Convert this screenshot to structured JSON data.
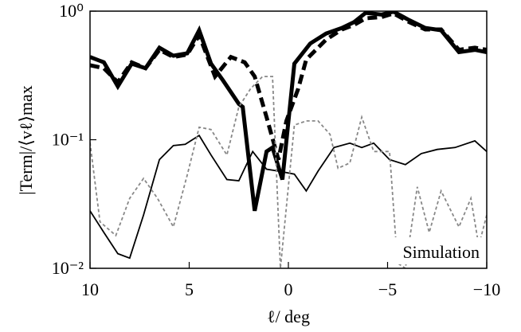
{
  "chart_data": {
    "type": "line",
    "xlabel": "ℓ/ deg",
    "ylabel": "|Term|/⟨vℓ⟩max",
    "annotation": "Simulation",
    "xlim": [
      10,
      -10
    ],
    "ylim": [
      0.01,
      1
    ],
    "log_y": true,
    "xticks": [
      10,
      5,
      0,
      {
        "value": -5,
        "label": "−5"
      },
      {
        "value": -10,
        "label": "−10"
      }
    ],
    "yticks": [
      {
        "value": 0.01,
        "label": "10⁻²"
      },
      {
        "value": 0.1,
        "label": "10⁻¹"
      },
      {
        "value": 1,
        "label": "10⁰"
      }
    ],
    "series": [
      {
        "color": "#000000",
        "width": 5,
        "dash": "none",
        "x": [
          10,
          9.3,
          8.6,
          7.9,
          7.2,
          6.5,
          5.8,
          5.1,
          4.5,
          3.9,
          3.3,
          2.5,
          2.3,
          1.7,
          1.1,
          0.8,
          0.3,
          -0.3,
          -1.1,
          -1.9,
          -2.7,
          -3.3,
          -3.9,
          -4.7,
          -5.3,
          -6.1,
          -6.9,
          -7.7,
          -8.6,
          -9.4,
          -10
        ],
        "values": [
          0.44,
          0.4,
          0.26,
          0.39,
          0.36,
          0.52,
          0.45,
          0.47,
          0.71,
          0.39,
          0.29,
          0.19,
          0.18,
          0.028,
          0.081,
          0.087,
          0.049,
          0.39,
          0.56,
          0.67,
          0.74,
          0.82,
          0.97,
          0.94,
          0.99,
          0.85,
          0.74,
          0.71,
          0.48,
          0.5,
          0.48
        ]
      },
      {
        "color": "#000000",
        "width": 5,
        "dash": "12,6",
        "x": [
          10,
          9.3,
          8.6,
          7.9,
          7.2,
          6.5,
          5.8,
          5.1,
          4.5,
          3.7,
          2.9,
          2.2,
          1.7,
          1.1,
          0.5,
          0.1,
          -0.5,
          -0.9,
          -1.9,
          -2.7,
          -3.3,
          -3.9,
          -4.7,
          -5.3,
          -6.1,
          -6.9,
          -7.7,
          -8.6,
          -9.4,
          -10
        ],
        "values": [
          0.38,
          0.36,
          0.28,
          0.4,
          0.36,
          0.5,
          0.44,
          0.46,
          0.65,
          0.31,
          0.44,
          0.4,
          0.31,
          0.15,
          0.07,
          0.14,
          0.25,
          0.42,
          0.6,
          0.72,
          0.78,
          0.88,
          0.9,
          0.96,
          0.82,
          0.72,
          0.72,
          0.5,
          0.52,
          0.5
        ]
      },
      {
        "color": "#000000",
        "width": 1.8,
        "dash": "none",
        "x": [
          10,
          9.3,
          8.6,
          8,
          7.3,
          6.5,
          5.8,
          5.2,
          4.5,
          3.9,
          3.1,
          2.5,
          1.8,
          1.1,
          0.5,
          -0.3,
          -0.9,
          -1.5,
          -2.3,
          -3.1,
          -3.7,
          -4.3,
          -5.1,
          -5.9,
          -6.7,
          -7.5,
          -8.4,
          -9.4,
          -10
        ],
        "values": [
          0.028,
          0.019,
          0.013,
          0.012,
          0.026,
          0.07,
          0.09,
          0.092,
          0.108,
          0.076,
          0.049,
          0.048,
          0.081,
          0.059,
          0.057,
          0.054,
          0.04,
          0.057,
          0.087,
          0.094,
          0.087,
          0.094,
          0.07,
          0.064,
          0.078,
          0.084,
          0.087,
          0.098,
          0.081
        ]
      },
      {
        "color": "#888888",
        "width": 1.8,
        "dash": "4,3",
        "x": [
          10,
          9.5,
          8.7,
          8,
          7.3,
          6.6,
          5.8,
          5.1,
          4.5,
          3.9,
          3.1,
          2.5,
          1.9,
          1.3,
          0.8,
          0.4,
          -0.3,
          -0.9,
          -1.5,
          -2.1,
          -2.5,
          -3.1,
          -3.7,
          -4.3,
          -5.1,
          -5.5,
          -5.9,
          -6.5,
          -7.1,
          -7.7,
          -8.6,
          -9.2,
          -9.6,
          -10
        ],
        "values": [
          0.095,
          0.023,
          0.018,
          0.035,
          0.05,
          0.035,
          0.021,
          0.053,
          0.125,
          0.12,
          0.076,
          0.18,
          0.25,
          0.31,
          0.31,
          0.01,
          0.13,
          0.14,
          0.14,
          0.11,
          0.06,
          0.066,
          0.15,
          0.081,
          0.081,
          0.011,
          0.01,
          0.043,
          0.019,
          0.04,
          0.021,
          0.035,
          0.015,
          0.026
        ]
      }
    ]
  }
}
